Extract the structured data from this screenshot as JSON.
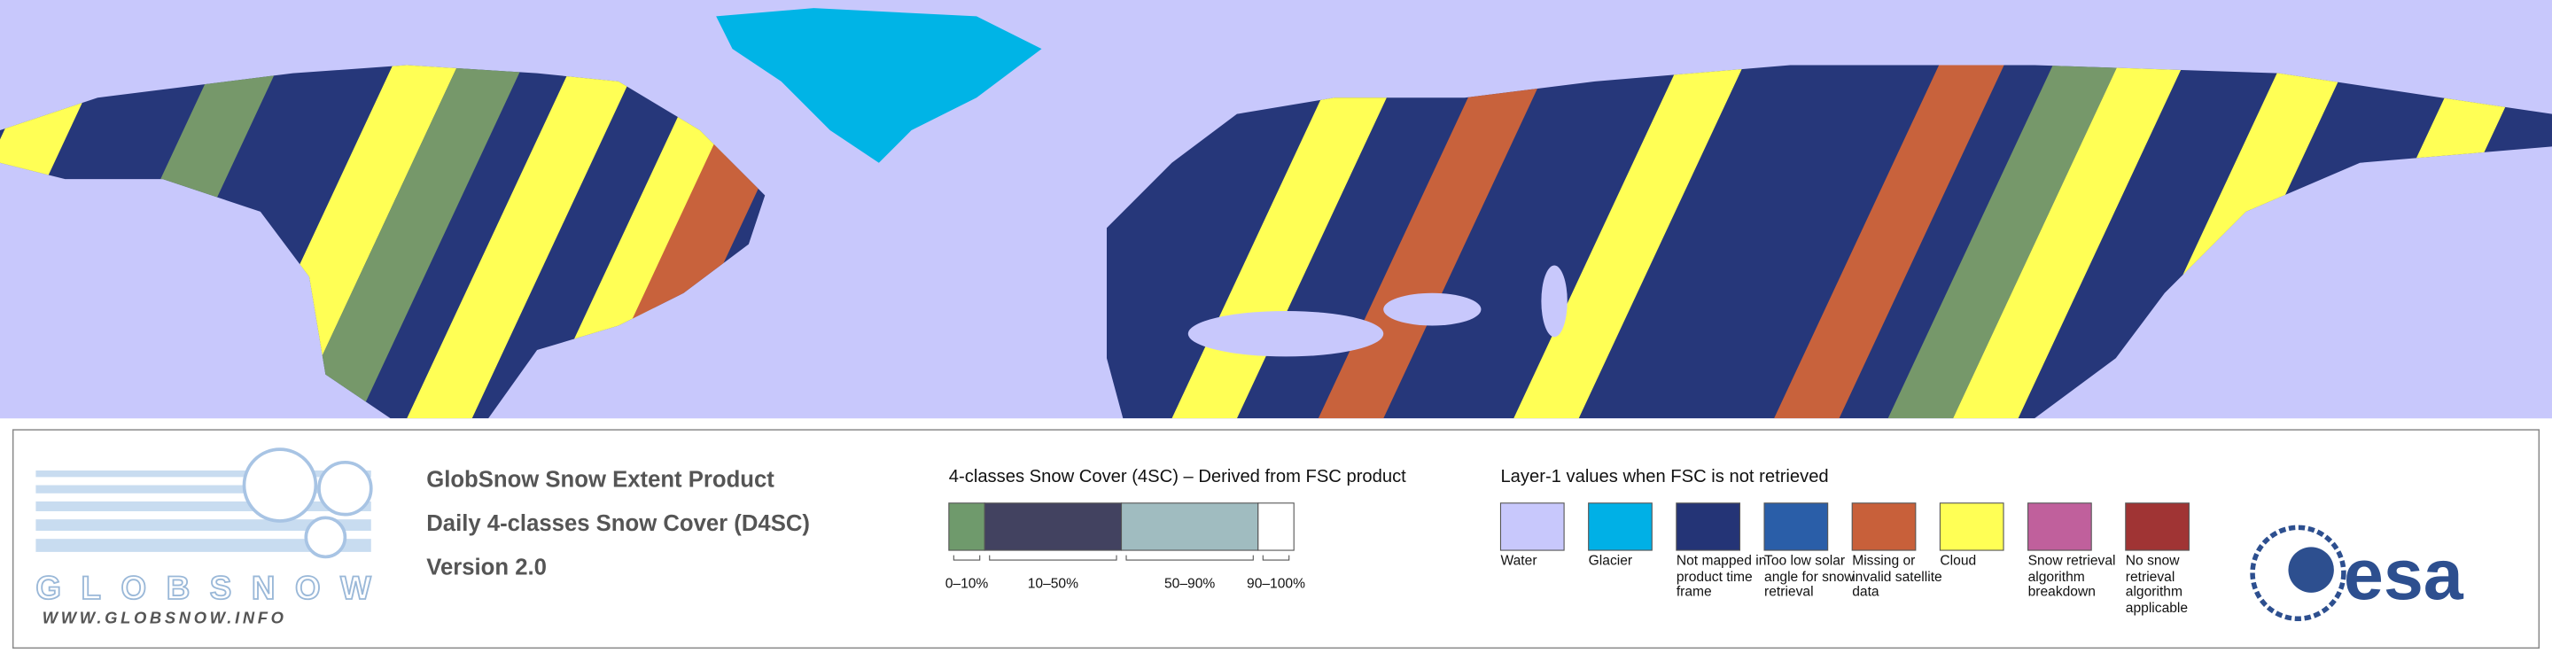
{
  "logo": {
    "name": "GLOBSNOW",
    "url": "WWW.GLOBSNOW.INFO"
  },
  "product": {
    "title": "GlobSnow Snow Extent Product",
    "subtitle": "Daily 4-classes Snow Cover (D4SC)",
    "version": "Version 2.0"
  },
  "four_class_legend": {
    "heading": "4-classes Snow Cover (4SC) – Derived from FSC product",
    "classes": [
      {
        "label": "0–10%",
        "color": "#6f9a6c"
      },
      {
        "label": "10–50%",
        "color": "#424260"
      },
      {
        "label": "50–90%",
        "color": "#a0bcc0"
      },
      {
        "label": "90–100%",
        "color": "#ffffff"
      }
    ]
  },
  "layer1_legend": {
    "heading": "Layer-1 values when FSC is not retrieved",
    "items": [
      {
        "label": "Water",
        "color": "#c8c8fc"
      },
      {
        "label": "Glacier",
        "color": "#00b0e6"
      },
      {
        "label": "Not mapped in product time frame",
        "color": "#243476"
      },
      {
        "label": "Too low solar angle for snow retrieval",
        "color": "#2a5ea8"
      },
      {
        "label": "Missing or invalid satellite data",
        "color": "#c8603a"
      },
      {
        "label": "Cloud",
        "color": "#ffff55"
      },
      {
        "label": "Snow retrieval algorithm breakdown",
        "color": "#c0609c"
      },
      {
        "label": "No snow retrieval algorithm applicable",
        "color": "#a03434"
      }
    ]
  },
  "agency_logo": "esa"
}
